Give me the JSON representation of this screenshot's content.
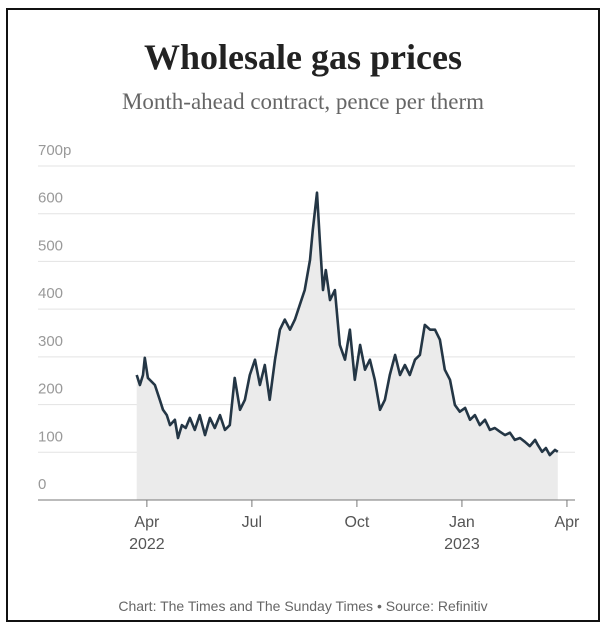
{
  "chart_data": {
    "type": "line",
    "title": "Wholesale gas prices",
    "subtitle": "Month-ahead contract, pence per therm",
    "source": "Chart: The Times and The Sunday Times • Source: Refinitiv",
    "x": [
      -0.29,
      -0.2,
      -0.11,
      -0.06,
      0.03,
      0.23,
      0.37,
      0.46,
      0.57,
      0.66,
      0.8,
      0.89,
      1,
      1.11,
      1.23,
      1.37,
      1.51,
      1.66,
      1.8,
      1.94,
      2.09,
      2.23,
      2.37,
      2.51,
      2.66,
      2.8,
      2.94,
      3.09,
      3.23,
      3.37,
      3.51,
      3.66,
      3.8,
      3.94,
      4.09,
      4.23,
      4.37,
      4.51,
      4.66,
      4.74,
      4.86,
      4.94,
      5.03,
      5.11,
      5.23,
      5.37,
      5.51,
      5.66,
      5.8,
      5.94,
      6.09,
      6.23,
      6.37,
      6.51,
      6.66,
      6.8,
      6.94,
      7.09,
      7.23,
      7.37,
      7.51,
      7.66,
      7.8,
      7.94,
      8.09,
      8.23,
      8.37,
      8.51,
      8.66,
      8.8,
      8.94,
      9.09,
      9.23,
      9.37,
      9.51,
      9.66,
      9.8,
      9.94,
      10.09,
      10.23,
      10.37,
      10.51,
      10.66,
      10.8,
      10.94,
      11.09,
      11.17,
      11.29,
      11.4,
      11.51,
      11.66,
      11.74
    ],
    "values": [
      262,
      241,
      262,
      298,
      256,
      241,
      210,
      189,
      178,
      157,
      168,
      130,
      157,
      151,
      172,
      147,
      178,
      136,
      172,
      151,
      178,
      147,
      157,
      256,
      189,
      210,
      262,
      294,
      241,
      283,
      210,
      294,
      357,
      378,
      357,
      378,
      409,
      440,
      503,
      566,
      644,
      545,
      440,
      482,
      419,
      440,
      325,
      294,
      357,
      252,
      325,
      273,
      294,
      252,
      189,
      210,
      262,
      304,
      262,
      283,
      262,
      294,
      304,
      367,
      357,
      357,
      336,
      273,
      252,
      199,
      185,
      193,
      168,
      178,
      157,
      168,
      147,
      151,
      143,
      136,
      141,
      126,
      130,
      122,
      113,
      126,
      115,
      101,
      109,
      94,
      105,
      101
    ],
    "color": "#243645",
    "area_color": "#ebebeb",
    "xlim": [
      -3.11,
      12.23
    ],
    "xticks": [
      {
        "value": 0,
        "label": "Apr\n2022"
      },
      {
        "value": 3,
        "label": "Jul"
      },
      {
        "value": 6,
        "label": "Oct"
      },
      {
        "value": 9,
        "label": "Jan\n2023"
      },
      {
        "value": 12,
        "label": "Apr"
      }
    ],
    "ylim": [
      0,
      700
    ],
    "yticks": [
      0,
      100,
      200,
      300,
      400,
      500,
      600,
      {
        "value": 700,
        "label": "700p"
      }
    ],
    "grid": true
  }
}
